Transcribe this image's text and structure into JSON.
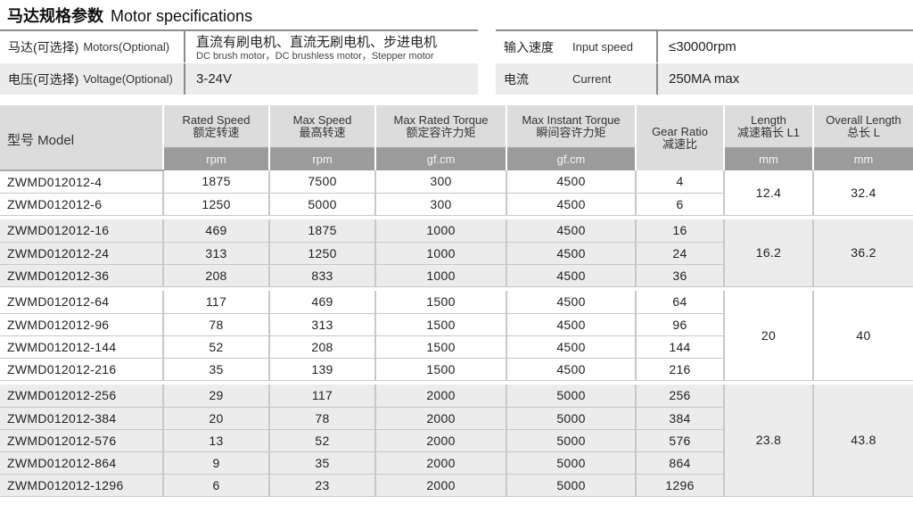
{
  "title": {
    "cn": "马达规格参数",
    "en": "Motor specifications"
  },
  "specs": {
    "motors": {
      "label_cn": "马达(可选择)",
      "label_en": "Motors(Optional)",
      "value_cn": "直流有刷电机、直流无刷电机、步进电机",
      "value_en": "DC brush motor，DC brushless motor，Stepper motor"
    },
    "voltage": {
      "label_cn": "电压(可选择)",
      "label_en": "Voltage(Optional)",
      "value": "3-24V"
    },
    "input_speed": {
      "label_cn": "输入速度",
      "label_en": "Input speed",
      "value": "≤30000rpm"
    },
    "current": {
      "label_cn": "电流",
      "label_en": "Current",
      "value": "250MA max"
    }
  },
  "table": {
    "model_header": "型号 Model",
    "headers": [
      {
        "en": "Rated Speed",
        "cn": "额定转速",
        "unit": "rpm"
      },
      {
        "en": "Max Speed",
        "cn": "最高转速",
        "unit": "rpm"
      },
      {
        "en": "Max Rated Torque",
        "cn": "额定容许力矩",
        "unit": "gf.cm"
      },
      {
        "en": "Max Instant Torque",
        "cn": "瞬间容许力矩",
        "unit": "gf.cm"
      },
      {
        "en": "Gear Ratio",
        "cn": "减速比",
        "unit": ""
      },
      {
        "en": "Length",
        "cn": "减速箱长 L1",
        "unit": "mm"
      },
      {
        "en": "Overall Length",
        "cn": "总长 L",
        "unit": "mm"
      }
    ],
    "groups": [
      {
        "L1": "12.4",
        "L": "32.4",
        "rows": [
          [
            "ZWMD012012-4",
            "1875",
            "7500",
            "300",
            "4500",
            "4"
          ],
          [
            "ZWMD012012-6",
            "1250",
            "5000",
            "300",
            "4500",
            "6"
          ]
        ]
      },
      {
        "L1": "16.2",
        "L": "36.2",
        "rows": [
          [
            "ZWMD012012-16",
            "469",
            "1875",
            "1000",
            "4500",
            "16"
          ],
          [
            "ZWMD012012-24",
            "313",
            "1250",
            "1000",
            "4500",
            "24"
          ],
          [
            "ZWMD012012-36",
            "208",
            "833",
            "1000",
            "4500",
            "36"
          ]
        ]
      },
      {
        "L1": "20",
        "L": "40",
        "rows": [
          [
            "ZWMD012012-64",
            "117",
            "469",
            "1500",
            "4500",
            "64"
          ],
          [
            "ZWMD012012-96",
            "78",
            "313",
            "1500",
            "4500",
            "96"
          ],
          [
            "ZWMD012012-144",
            "52",
            "208",
            "1500",
            "4500",
            "144"
          ],
          [
            "ZWMD012012-216",
            "35",
            "139",
            "1500",
            "4500",
            "216"
          ]
        ]
      },
      {
        "L1": "23.8",
        "L": "43.8",
        "rows": [
          [
            "ZWMD012012-256",
            "29",
            "117",
            "2000",
            "5000",
            "256"
          ],
          [
            "ZWMD012012-384",
            "20",
            "78",
            "2000",
            "5000",
            "384"
          ],
          [
            "ZWMD012012-576",
            "13",
            "52",
            "2000",
            "5000",
            "576"
          ],
          [
            "ZWMD012012-864",
            "9",
            "35",
            "2000",
            "5000",
            "864"
          ],
          [
            "ZWMD012012-1296",
            "6",
            "23",
            "2000",
            "5000",
            "1296"
          ]
        ]
      }
    ]
  }
}
